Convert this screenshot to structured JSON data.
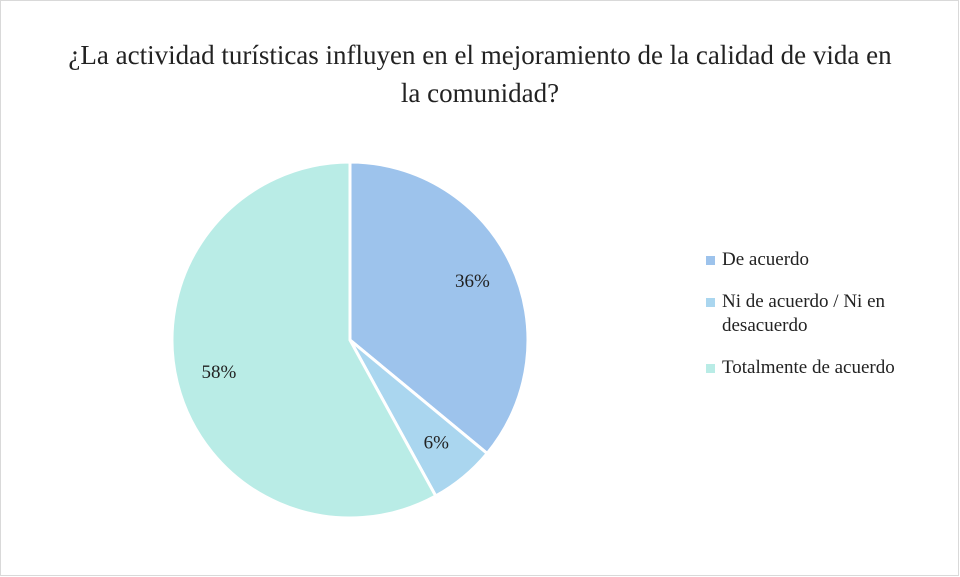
{
  "chart_data": {
    "type": "pie",
    "title": "¿La actividad turísticas influyen en el mejoramiento de la calidad de vida en la comunidad?",
    "categories": [
      "De acuerdo",
      "Ni de acuerdo / Ni en desacuerdo",
      "Totalmente de acuerdo"
    ],
    "values": [
      36,
      6,
      58
    ],
    "value_labels": [
      "36%",
      "6%",
      "58%"
    ],
    "colors": [
      "#9dc3ec",
      "#aad6ef",
      "#b9ece6"
    ],
    "legend": "right"
  }
}
